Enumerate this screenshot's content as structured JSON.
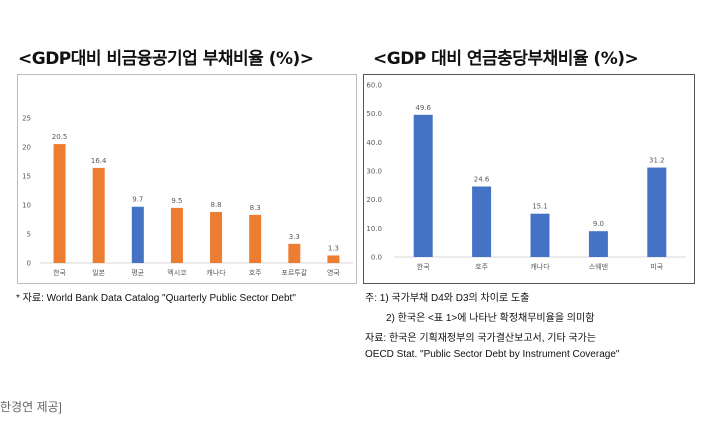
{
  "chart_data": [
    {
      "type": "bar",
      "title": "<GDP대비 비금융공기업 부채비율 (%)>",
      "categories": [
        "한국",
        "일본",
        "평균",
        "멕시코",
        "캐나다",
        "호주",
        "포르투갈",
        "영국"
      ],
      "values": [
        20.5,
        16.4,
        9.7,
        9.5,
        8.8,
        8.3,
        3.3,
        1.3
      ],
      "value_labels": [
        "20.5",
        "16.4",
        "9.7",
        "9.5",
        "8.8",
        "8.3",
        "3.3",
        "1.3"
      ],
      "bar_colors": [
        "#ed7d31",
        "#ed7d31",
        "#4472c4",
        "#ed7d31",
        "#ed7d31",
        "#ed7d31",
        "#ed7d31",
        "#ed7d31"
      ],
      "ylim": [
        0,
        25
      ],
      "yticks": [
        0,
        5,
        10,
        15,
        20,
        25
      ],
      "ytick_labels": [
        "0",
        "5",
        "10",
        "15",
        "20",
        "25"
      ],
      "xlabel": "",
      "ylabel": "",
      "grid": false
    },
    {
      "type": "bar",
      "title": "<GDP 대비 연금충당부채비율 (%)>",
      "categories": [
        "한국",
        "호주",
        "캐나다",
        "스웨덴",
        "미국"
      ],
      "values": [
        49.6,
        24.6,
        15.1,
        9.0,
        31.2
      ],
      "value_labels": [
        "49.6",
        "24.6",
        "15.1",
        "9.0",
        "31.2"
      ],
      "bar_color": "#4472c4",
      "ylim": [
        0,
        60
      ],
      "yticks": [
        0,
        10,
        20,
        30,
        40,
        50,
        60
      ],
      "ytick_labels": [
        "0.0",
        "10.0",
        "20.0",
        "30.0",
        "40.0",
        "50.0",
        "60.0"
      ],
      "xlabel": "",
      "ylabel": "",
      "grid": false
    }
  ],
  "notes": {
    "source_left": "* 자료: World Bank Data Catalog \"Quarterly Public Sector Debt\"",
    "note1": "주: 1) 국가부채 D4와 D3의 차이로 도출",
    "note2": "2) 한국은 <표 1>에 나타난 확정채무비율을 의미함",
    "note3": "자료: 한국은 기획재정부의 국가결산보고서, 기타 국가는",
    "note4": "OECD Stat. \"Public Sector Debt by Instrument Coverage\""
  },
  "credit": "한경연 제공]",
  "colors": {
    "axis": "#d9d9d9",
    "text": "#595959"
  }
}
